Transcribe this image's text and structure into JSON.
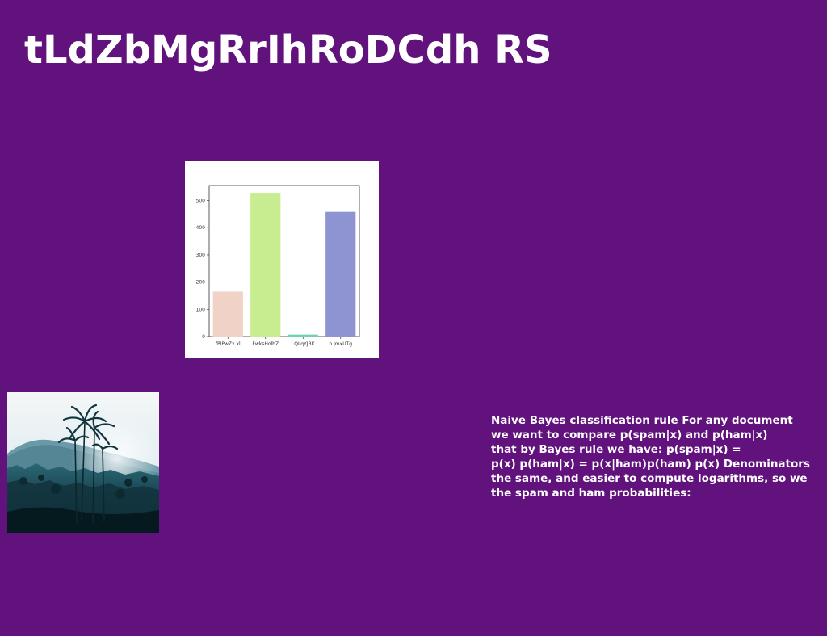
{
  "slide": {
    "title": "tLdZbMgRrIhRoDCdh RS",
    "background_color": "#62127c",
    "text_color": "#ffffff"
  },
  "body_text": {
    "lines": [
      "Naive Bayes classification rule For any document",
      "we want to compare p(spam|x) and p(ham|x)",
      "that by Bayes rule we have: p(spam|x) =",
      "p(x) p(ham|x) = p(x|ham)p(ham) p(x) Denominators",
      "the same, and easier to compute logarithms, so we",
      "the spam and ham probabilities:"
    ]
  },
  "photo": {
    "icon": "palm-tree-landscape-photo"
  },
  "chart_data": {
    "type": "bar",
    "categories": [
      "fPIPwZx xl",
      "FwksHolbZ",
      "LQLqYJBK",
      "b jmxUTg"
    ],
    "values": [
      165,
      528,
      7,
      458
    ],
    "colors": [
      "#f0d2c6",
      "#c8ec90",
      "#6fd3ae",
      "#8e94d2"
    ],
    "yticks": [
      0,
      100,
      200,
      300,
      400,
      500
    ],
    "ylim": [
      0,
      555
    ],
    "grid": false,
    "title": "",
    "xlabel": "",
    "ylabel": ""
  }
}
